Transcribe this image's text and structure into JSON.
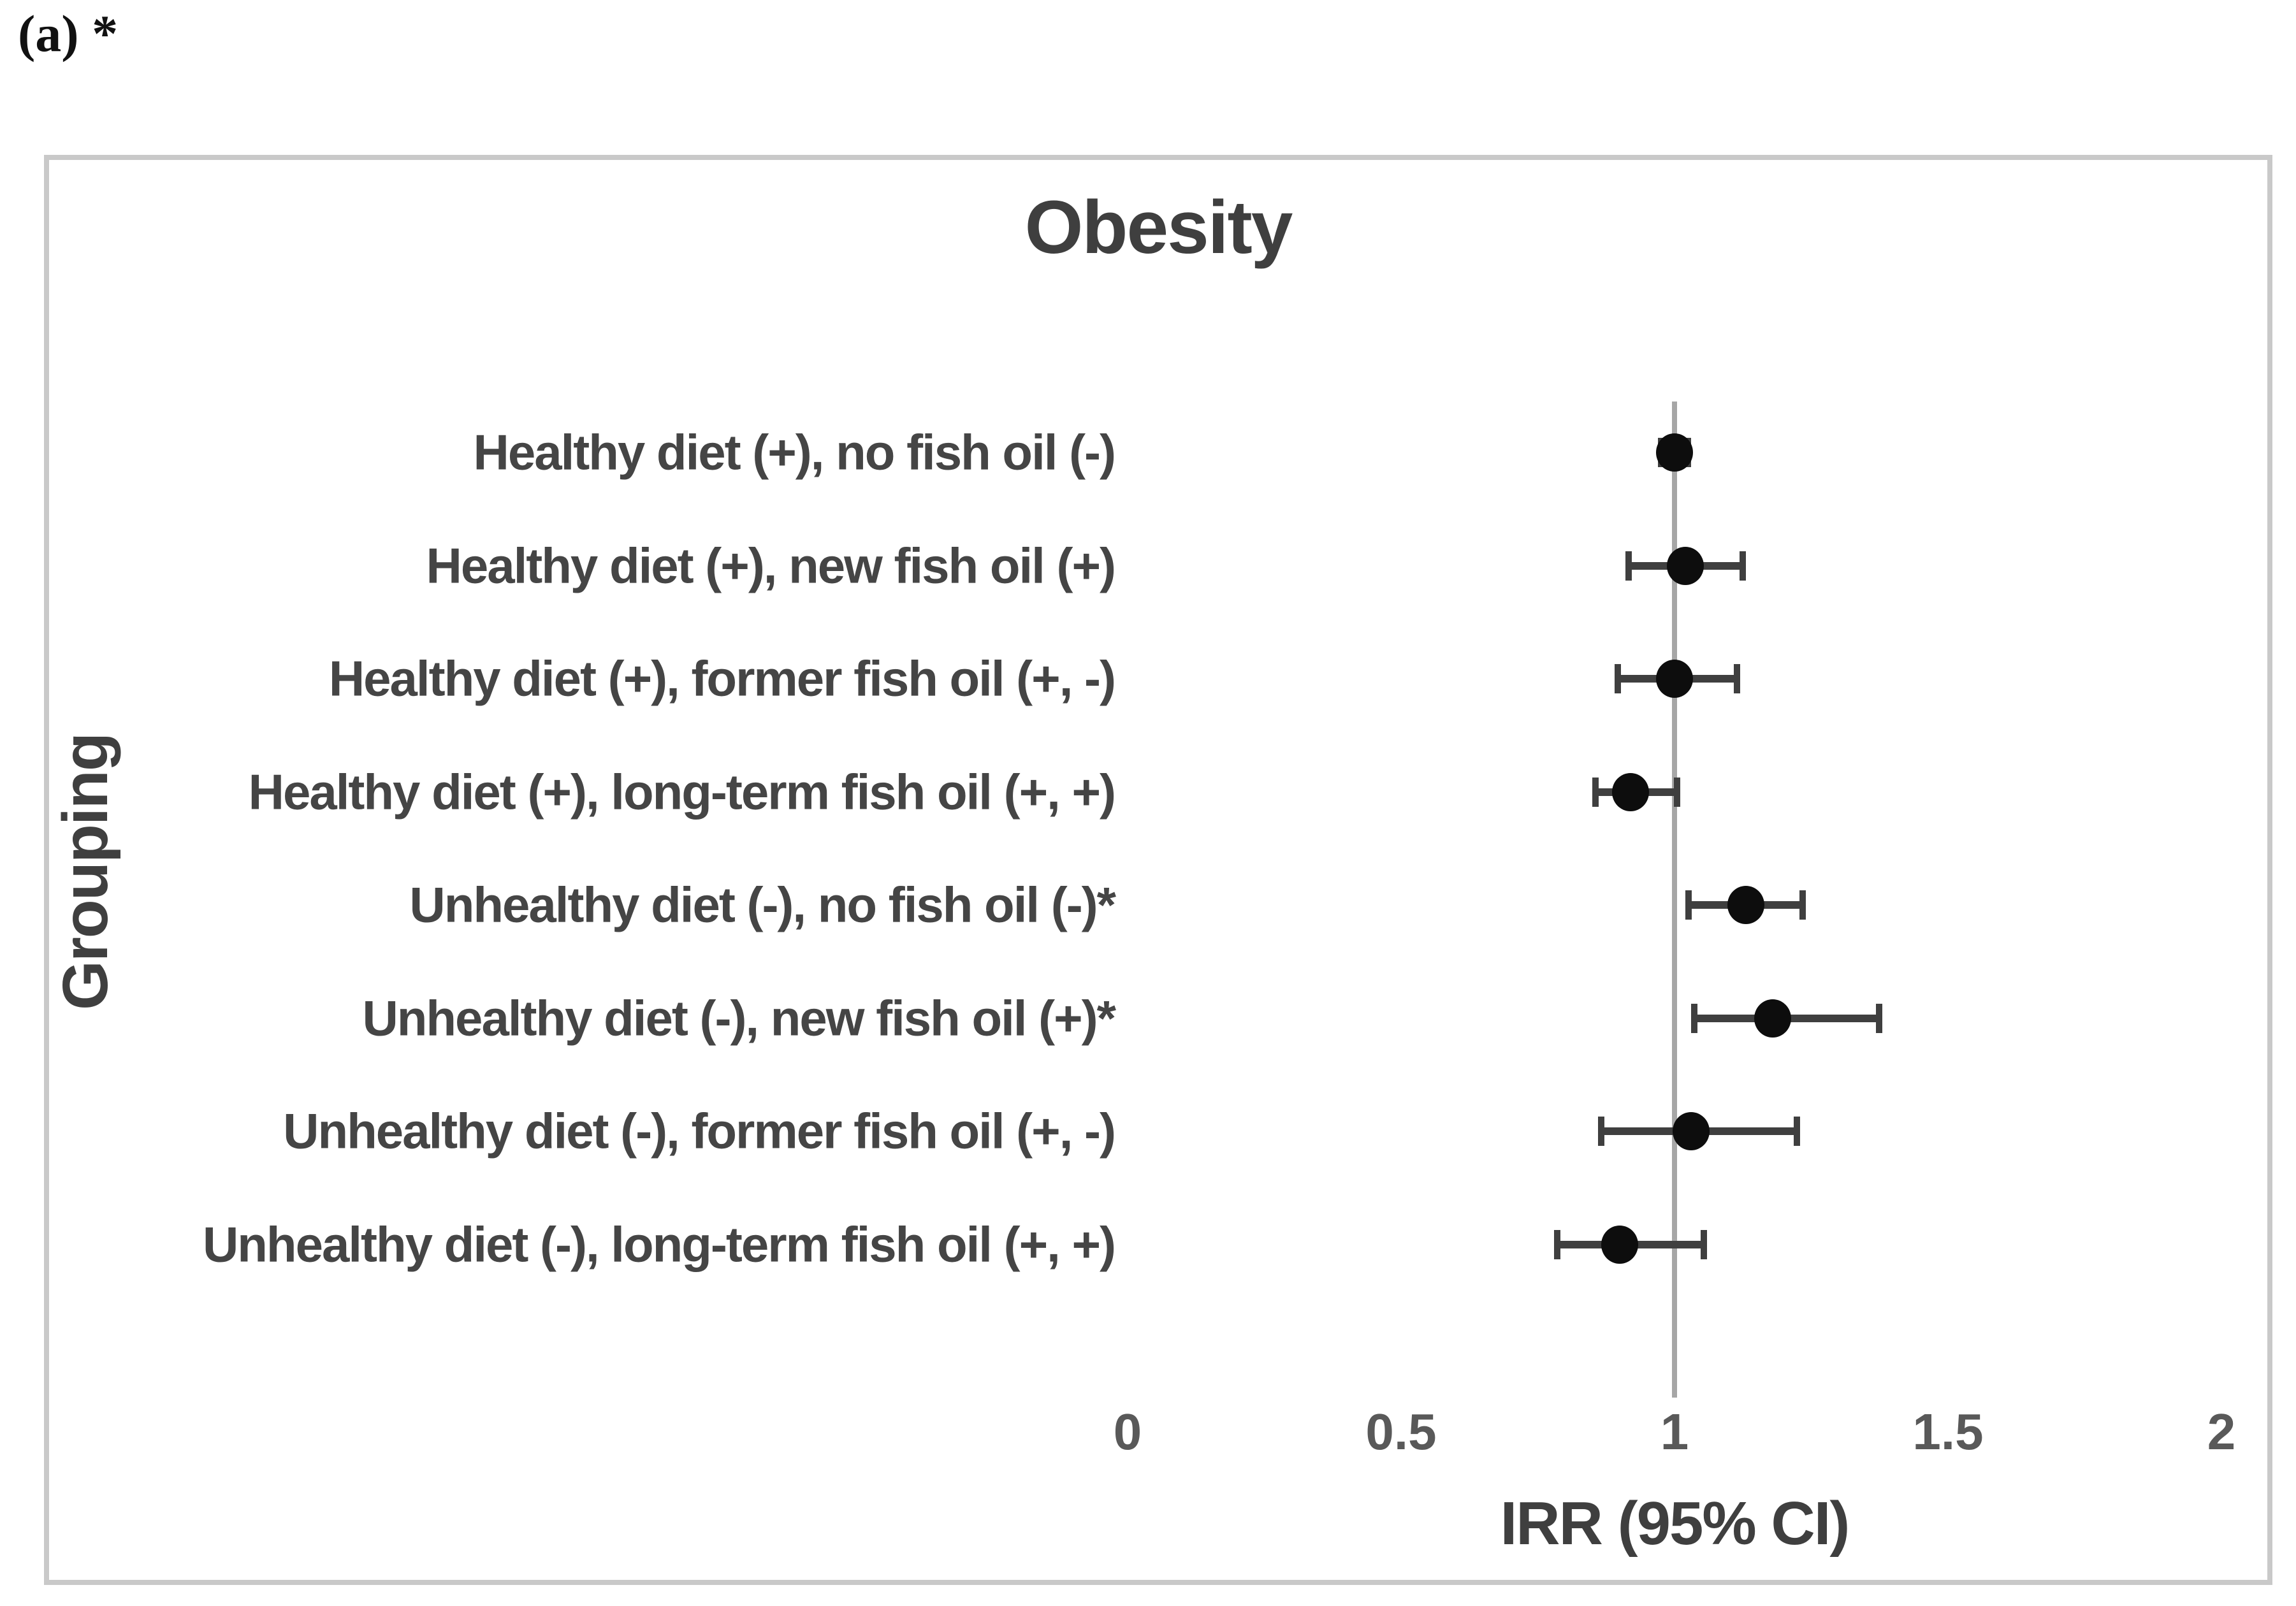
{
  "figure": {
    "panel_label": "(a)",
    "panel_suffix": " *"
  },
  "chart_data": {
    "type": "scatter",
    "subtype": "forest-plot",
    "title": "Obesity",
    "xlabel": "IRR (95% CI)",
    "ylabel": "Grouping",
    "xlim": [
      0,
      2
    ],
    "grid": false,
    "legend": false,
    "reference_line_x": 1,
    "x_ticks": [
      {
        "value": 0,
        "label": "0"
      },
      {
        "value": 0.5,
        "label": "0.5"
      },
      {
        "value": 1,
        "label": "1"
      },
      {
        "value": 1.5,
        "label": "1.5"
      },
      {
        "value": 2,
        "label": "2"
      }
    ],
    "points": [
      {
        "category": "Healthy diet (+), no fish oil (-)",
        "irr": 1.0,
        "ci_low": 0.97,
        "ci_high": 1.03
      },
      {
        "category": "Healthy diet (+), new fish oil (+)",
        "irr": 1.02,
        "ci_low": 0.91,
        "ci_high": 1.13
      },
      {
        "category": "Healthy diet (+), former fish oil (+, -)",
        "irr": 1.0,
        "ci_low": 0.89,
        "ci_high": 1.12
      },
      {
        "category": "Healthy diet (+), long-term fish oil (+, +)",
        "irr": 0.92,
        "ci_low": 0.85,
        "ci_high": 1.01
      },
      {
        "category": "Unhealthy diet  (-), no fish oil (-)*",
        "irr": 1.13,
        "ci_low": 1.02,
        "ci_high": 1.24
      },
      {
        "category": "Unhealthy diet  (-), new fish oil (+)*",
        "irr": 1.18,
        "ci_low": 1.03,
        "ci_high": 1.38
      },
      {
        "category": "Unhealthy diet  (-), former fish oil (+, -)",
        "irr": 1.03,
        "ci_low": 0.86,
        "ci_high": 1.23
      },
      {
        "category": "Unhealthy diet  (-), long-term fish oil (+, +)",
        "irr": 0.9,
        "ci_low": 0.78,
        "ci_high": 1.06
      }
    ],
    "colors": {
      "marker": "#0d0d0d",
      "error_bar": "#3f3f3f",
      "reference_line": "#a6a6a6",
      "box_border": "#c9c9c9",
      "title_text": "#3f3f3f",
      "category_text": "#454545",
      "tick_text": "#595959"
    }
  }
}
